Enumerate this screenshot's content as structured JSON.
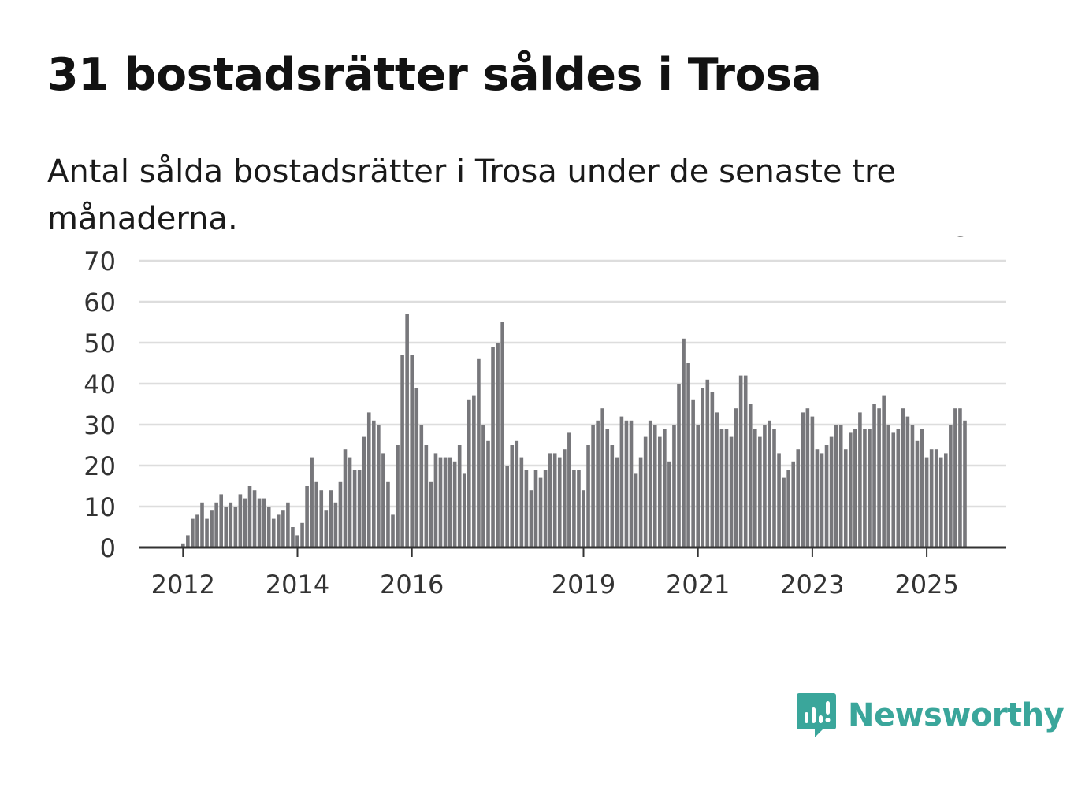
{
  "title": "31 bostadsrätter såldes i Trosa",
  "subtitle": "Antal sålda bostadsrätter i Trosa under de senaste tre månaderna.",
  "brand": {
    "name": "Newsworthy",
    "icon": "newsworthy-logo-icon",
    "color": "#3aa69b"
  },
  "colors": {
    "bar": "#77777b",
    "highlight": "#1a9a90",
    "grid": "#dddddd",
    "axis": "#333333",
    "text": "#333333"
  },
  "chart_data": {
    "type": "bar",
    "title": "31 bostadsrätter såldes i Trosa",
    "ylabel": "",
    "xlabel": "",
    "ylim": [
      0,
      70
    ],
    "yticks": [
      0,
      10,
      20,
      30,
      40,
      50,
      60,
      70
    ],
    "xticks": [
      {
        "label": "2012",
        "index": 0
      },
      {
        "label": "2014",
        "index": 24
      },
      {
        "label": "2016",
        "index": 48
      },
      {
        "label": "2019",
        "index": 84
      },
      {
        "label": "2021",
        "index": 108
      },
      {
        "label": "2023",
        "index": 132
      },
      {
        "label": "2025",
        "index": 156
      }
    ],
    "first_period": "2011-12",
    "values": [
      1,
      3,
      7,
      8,
      11,
      7,
      9,
      11,
      13,
      10,
      11,
      10,
      13,
      12,
      15,
      14,
      12,
      12,
      10,
      7,
      8,
      9,
      11,
      5,
      3,
      6,
      15,
      22,
      16,
      14,
      9,
      14,
      11,
      16,
      24,
      22,
      19,
      19,
      27,
      33,
      31,
      30,
      23,
      16,
      8,
      25,
      47,
      57,
      47,
      39,
      30,
      25,
      16,
      23,
      22,
      22,
      22,
      21,
      25,
      18,
      36,
      37,
      46,
      30,
      26,
      49,
      50,
      55,
      20,
      25,
      26,
      22,
      19,
      14,
      19,
      17,
      19,
      23,
      23,
      22,
      24,
      28,
      19,
      19,
      14,
      25,
      30,
      31,
      34,
      29,
      25,
      22,
      32,
      31,
      31,
      18,
      22,
      27,
      31,
      30,
      27,
      29,
      21,
      30,
      40,
      51,
      45,
      36,
      30,
      39,
      41,
      38,
      33,
      29,
      29,
      27,
      34,
      42,
      42,
      35,
      29,
      27,
      30,
      31,
      29,
      23,
      17,
      19,
      21,
      24,
      33,
      34,
      32,
      24,
      23,
      25,
      27,
      30,
      30,
      24,
      28,
      29,
      33,
      29,
      29,
      35,
      34,
      37,
      30,
      28,
      29,
      34,
      32,
      30,
      26,
      29,
      22,
      24,
      24,
      22,
      23,
      30,
      34,
      34,
      31
    ],
    "highlight_index": 165,
    "highlight_label": "31"
  }
}
